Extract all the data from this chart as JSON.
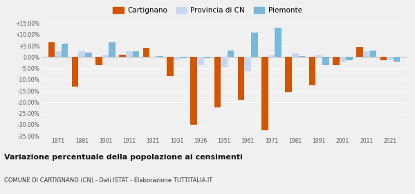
{
  "years": [
    1871,
    1881,
    1901,
    1911,
    1921,
    1931,
    1936,
    1951,
    1961,
    1971,
    1981,
    1991,
    2001,
    2011,
    2021
  ],
  "cartignano": [
    6.5,
    -13.0,
    -3.5,
    1.0,
    4.0,
    -8.5,
    -30.0,
    -22.5,
    -19.0,
    -32.5,
    -15.5,
    -12.5,
    -3.5,
    4.5,
    -1.5
  ],
  "provincia_cn": [
    2.5,
    2.5,
    1.0,
    2.5,
    -0.5,
    -1.5,
    -3.5,
    -4.5,
    -6.0,
    1.0,
    1.5,
    1.0,
    -2.0,
    2.5,
    -1.5
  ],
  "piemonte": [
    6.0,
    2.0,
    6.5,
    2.5,
    0.5,
    -0.5,
    -0.5,
    3.0,
    11.0,
    13.0,
    0.5,
    -3.5,
    -1.5,
    3.0,
    -2.0
  ],
  "cartignano_color": "#d45500",
  "provincia_color": "#c5d8f0",
  "piemonte_color": "#7ab8d9",
  "background_color": "#f0f0f0",
  "grid_color": "#ffffff",
  "ylim": [
    -35,
    15
  ],
  "yticks": [
    -35,
    -30,
    -25,
    -20,
    -15,
    -10,
    -5,
    0,
    5,
    10,
    15
  ],
  "title": "Variazione percentuale della popolazione ai censimenti",
  "subtitle": "COMUNE DI CARTIGNANO (CN) - Dati ISTAT - Elaborazione TUTTITALIA.IT",
  "legend_labels": [
    "Cartignano",
    "Provincia di CN",
    "Piemonte"
  ]
}
